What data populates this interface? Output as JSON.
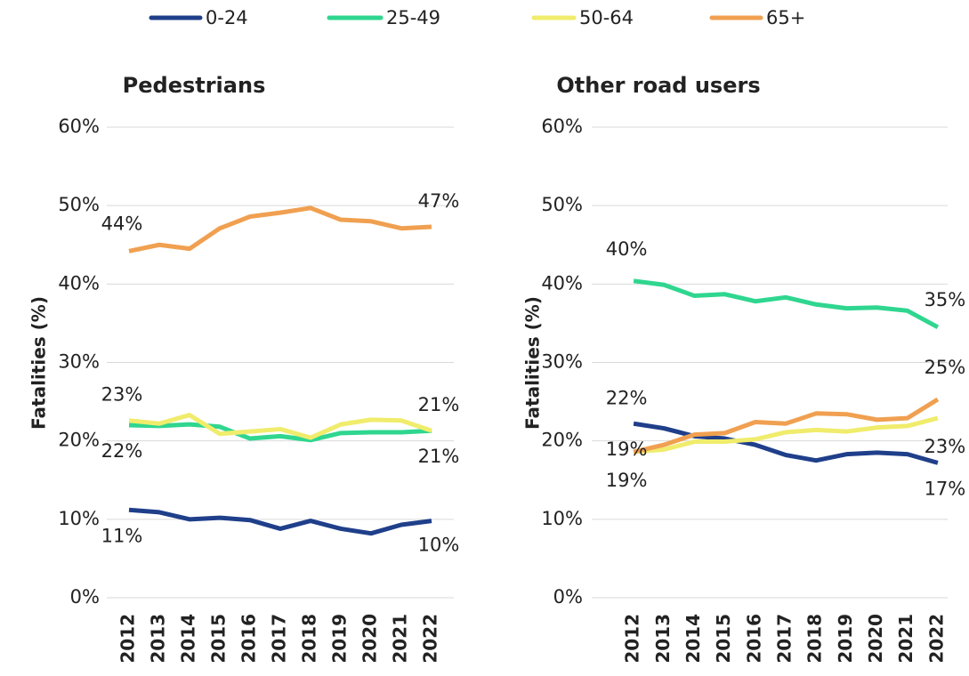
{
  "chart_data": [
    {
      "type": "line",
      "title": "Pedestrians",
      "y_label": "Fatalities (%)",
      "categories": [
        "2012",
        "2013",
        "2014",
        "2015",
        "2016",
        "2017",
        "2018",
        "2019",
        "2020",
        "2021",
        "2022"
      ],
      "ylim": [
        0,
        60
      ],
      "yticks": [
        {
          "value": 0,
          "label": "0%"
        },
        {
          "value": 10,
          "label": "10%"
        },
        {
          "value": 20,
          "label": "20%"
        },
        {
          "value": 30,
          "label": "30%"
        },
        {
          "value": 40,
          "label": "40%"
        },
        {
          "value": 50,
          "label": "50%"
        },
        {
          "value": 60,
          "label": "60%"
        }
      ],
      "grid": true,
      "series": [
        {
          "name": "0-24",
          "color": "#1f3f8a",
          "values": [
            11.2,
            10.9,
            10.0,
            10.2,
            9.9,
            8.8,
            9.8,
            8.8,
            8.2,
            9.3,
            9.8
          ],
          "value_labels": [
            "11%",
            null,
            null,
            null,
            null,
            null,
            null,
            null,
            null,
            null,
            "10%"
          ]
        },
        {
          "name": "25-49",
          "color": "#2fd68f",
          "values": [
            22.0,
            21.9,
            22.1,
            21.8,
            20.3,
            20.6,
            20.1,
            21.0,
            21.1,
            21.1,
            21.3
          ],
          "value_labels": [
            "22%",
            null,
            null,
            null,
            null,
            null,
            null,
            null,
            null,
            null,
            "21%"
          ]
        },
        {
          "name": "50-64",
          "color": "#f0ec6c",
          "values": [
            22.6,
            22.2,
            23.3,
            20.9,
            21.2,
            21.5,
            20.4,
            22.1,
            22.7,
            22.6,
            21.3
          ],
          "value_labels": [
            "23%",
            null,
            null,
            null,
            null,
            null,
            null,
            null,
            null,
            null,
            "21%"
          ]
        },
        {
          "name": "65+",
          "color": "#f0a050",
          "values": [
            44.2,
            45.0,
            44.5,
            47.1,
            48.6,
            49.1,
            49.7,
            48.2,
            48.0,
            47.1,
            47.3
          ],
          "value_labels": [
            "44%",
            null,
            null,
            null,
            null,
            null,
            null,
            null,
            null,
            null,
            "47%"
          ]
        }
      ]
    },
    {
      "type": "line",
      "title": "Other road users",
      "y_label": "Fatalities (%)",
      "categories": [
        "2012",
        "2013",
        "2014",
        "2015",
        "2016",
        "2017",
        "2018",
        "2019",
        "2020",
        "2021",
        "2022"
      ],
      "ylim": [
        0,
        60
      ],
      "yticks": [
        {
          "value": 0,
          "label": "0%"
        },
        {
          "value": 10,
          "label": "10%"
        },
        {
          "value": 20,
          "label": "20%"
        },
        {
          "value": 30,
          "label": "30%"
        },
        {
          "value": 40,
          "label": "40%"
        },
        {
          "value": 50,
          "label": "50%"
        },
        {
          "value": 60,
          "label": "60%"
        }
      ],
      "grid": true,
      "series": [
        {
          "name": "0-24",
          "color": "#1f3f8a",
          "values": [
            22.2,
            21.6,
            20.6,
            20.3,
            19.5,
            18.2,
            17.5,
            18.3,
            18.5,
            18.3,
            17.2
          ],
          "value_labels": [
            "22%",
            null,
            null,
            null,
            null,
            null,
            null,
            null,
            null,
            null,
            "17%"
          ]
        },
        {
          "name": "25-49",
          "color": "#2fd68f",
          "values": [
            40.4,
            39.9,
            38.5,
            38.7,
            37.8,
            38.3,
            37.4,
            36.9,
            37.0,
            36.6,
            34.5
          ],
          "value_labels": [
            "40%",
            null,
            null,
            null,
            null,
            null,
            null,
            null,
            null,
            null,
            "35%"
          ]
        },
        {
          "name": "50-64",
          "color": "#f0ec6c",
          "values": [
            18.6,
            18.9,
            19.9,
            19.9,
            20.2,
            21.1,
            21.4,
            21.2,
            21.7,
            21.9,
            22.9
          ],
          "value_labels": [
            "19%",
            null,
            null,
            null,
            null,
            null,
            null,
            null,
            null,
            null,
            "23%"
          ]
        },
        {
          "name": "65+",
          "color": "#f0a050",
          "values": [
            18.6,
            19.5,
            20.8,
            21.0,
            22.4,
            22.2,
            23.5,
            23.4,
            22.7,
            22.9,
            25.3
          ],
          "value_labels": [
            "19%",
            null,
            null,
            null,
            null,
            null,
            null,
            null,
            null,
            null,
            "25%"
          ]
        }
      ]
    }
  ]
}
